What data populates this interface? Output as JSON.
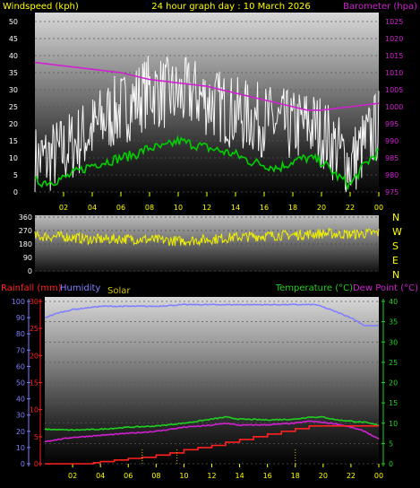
{
  "header": {
    "left": "Windspeed (kph)",
    "center": "24 hour graph day : 10 March 2026",
    "right": "Barometer (hpa)"
  },
  "colors": {
    "wind": "#ffffff",
    "gust": "#ffffff",
    "wind_avg": "#00d000",
    "barometer": "#d020d0",
    "direction": "#f0f000",
    "rain": "#ff2020",
    "humidity": "#8080ff",
    "solar": "#d0c000",
    "temperature": "#20d020",
    "dew_point": "#d020d0",
    "tick_text": "#ffff00"
  },
  "wind_panel": {
    "left_ticks": [
      "0",
      "5",
      "10",
      "15",
      "20",
      "25",
      "30",
      "35",
      "40",
      "45",
      "50"
    ],
    "right_ticks": [
      "975",
      "980",
      "985",
      "990",
      "995",
      "1000",
      "1005",
      "1010",
      "1015",
      "1020",
      "1025"
    ],
    "x_ticks": [
      "02",
      "04",
      "06",
      "08",
      "10",
      "12",
      "14",
      "16",
      "18",
      "20",
      "22",
      "00"
    ]
  },
  "dir_panel": {
    "left_ticks": [
      "0",
      "90",
      "180",
      "270",
      "360"
    ],
    "right_labels": [
      "N",
      "W",
      "S",
      "E",
      "N"
    ]
  },
  "bottom_panel": {
    "label_rain": "Rainfall (mm)",
    "label_humidity": "Humidity",
    "label_solar": "Solar",
    "label_temperature": "Temperature (°C)",
    "label_dewpoint": "Dew Point (°C)",
    "humidity_ticks": [
      "0",
      "10",
      "20",
      "30",
      "40",
      "50",
      "60",
      "70",
      "80",
      "90",
      "100"
    ],
    "rain_ticks": [
      "0",
      "5",
      "10",
      "15",
      "20",
      "25",
      "30"
    ],
    "temp_ticks": [
      "0",
      "5",
      "10",
      "15",
      "20",
      "25",
      "30",
      "35",
      "40"
    ],
    "x_ticks": [
      "02",
      "04",
      "06",
      "08",
      "10",
      "12",
      "14",
      "16",
      "18",
      "20",
      "22",
      "00"
    ]
  },
  "chart_data": [
    {
      "type": "line",
      "x_unit": "hour",
      "xlim": [
        0,
        24
      ],
      "ylim": [
        0,
        50
      ],
      "y2lim": [
        975,
        1025
      ],
      "series": [
        {
          "axis": "left",
          "x": [
            0,
            1,
            2,
            3,
            4,
            5,
            6,
            7,
            8,
            9,
            10,
            11,
            12,
            13,
            14,
            15,
            16,
            17,
            18,
            19,
            20,
            21,
            22,
            23,
            24
          ],
          "values": [
            9,
            10,
            12,
            15,
            18,
            22,
            24,
            27,
            30,
            29,
            28,
            29,
            27,
            25,
            23,
            22,
            21,
            20,
            19,
            20,
            18,
            13,
            8,
            14,
            20
          ]
        },
        {
          "axis": "left",
          "x": [
            0,
            1,
            2,
            3,
            4,
            5,
            6,
            7,
            8,
            9,
            10,
            11,
            12,
            13,
            14,
            15,
            16,
            17,
            18,
            19,
            20,
            21,
            22,
            23,
            24
          ],
          "values": [
            3,
            3,
            4,
            6,
            8,
            9,
            10,
            11,
            13,
            13,
            15,
            14,
            13,
            12,
            11,
            9,
            8,
            7,
            9,
            10,
            9,
            5,
            2,
            8,
            12
          ]
        },
        {
          "axis": "right",
          "x": [
            0,
            2,
            4,
            6,
            8,
            10,
            12,
            14,
            16,
            18,
            19,
            20,
            22,
            24
          ],
          "values": [
            1013,
            1012,
            1011,
            1010,
            1008,
            1007,
            1006,
            1004,
            1002,
            1000,
            999,
            999,
            1000,
            1001
          ]
        }
      ]
    },
    {
      "type": "line",
      "x_unit": "hour",
      "xlim": [
        0,
        24
      ],
      "ylim": [
        0,
        360
      ],
      "series": [
        {
          "x": [
            0,
            2,
            4,
            6,
            8,
            10,
            12,
            14,
            16,
            18,
            20,
            22,
            24
          ],
          "values": [
            230,
            230,
            210,
            215,
            210,
            200,
            210,
            225,
            235,
            240,
            250,
            245,
            255
          ]
        }
      ]
    },
    {
      "type": "line",
      "x_unit": "hour",
      "xlim": [
        0,
        24
      ],
      "ylim": [
        0,
        100
      ],
      "series": [
        {
          "axis": "humidity",
          "x": [
            0,
            1,
            2,
            4,
            6,
            8,
            10,
            12,
            14,
            16,
            18,
            19.5,
            20.5,
            22,
            23,
            24
          ],
          "values": [
            90,
            93,
            95,
            97,
            97,
            97,
            98,
            98,
            98,
            98,
            98,
            98,
            95,
            90,
            85,
            85
          ]
        },
        {
          "axis": "temperature",
          "ylim": [
            0,
            40
          ],
          "x": [
            0,
            2,
            4,
            6,
            8,
            10,
            12,
            13,
            14,
            16,
            18,
            19,
            20,
            21,
            22,
            23,
            24
          ],
          "values": [
            8.5,
            8.3,
            8.5,
            9,
            9.3,
            10,
            11,
            11.5,
            11,
            10.8,
            11,
            11.5,
            11.5,
            10.8,
            10.5,
            10.2,
            9.5
          ]
        },
        {
          "axis": "temperature",
          "ylim": [
            0,
            40
          ],
          "x": [
            0,
            2,
            4,
            6,
            8,
            10,
            12,
            13,
            14,
            16,
            18,
            19,
            20,
            21,
            22,
            23,
            24
          ],
          "values": [
            5.5,
            6.5,
            7,
            7.5,
            8,
            9,
            9.5,
            10,
            9.5,
            9.6,
            10,
            10.5,
            10.2,
            9.8,
            9,
            8,
            6
          ]
        },
        {
          "axis": "rain",
          "ylim": [
            0,
            30
          ],
          "x": [
            0,
            2.6,
            3.5,
            4,
            5,
            6,
            7,
            8,
            9,
            10,
            11,
            12,
            13,
            14,
            15,
            16,
            17,
            18,
            19,
            20,
            24
          ],
          "values": [
            0,
            0,
            0.2,
            0.4,
            0.7,
            1,
            1.2,
            1.6,
            2,
            2.6,
            3,
            3.4,
            4,
            4.5,
            5,
            5.5,
            6,
            6.5,
            7,
            7,
            7
          ]
        },
        {
          "axis": "solar",
          "unscaled": true,
          "x": [
            7,
            9.5,
            18
          ],
          "values": [
            1,
            1,
            1
          ]
        }
      ]
    }
  ]
}
